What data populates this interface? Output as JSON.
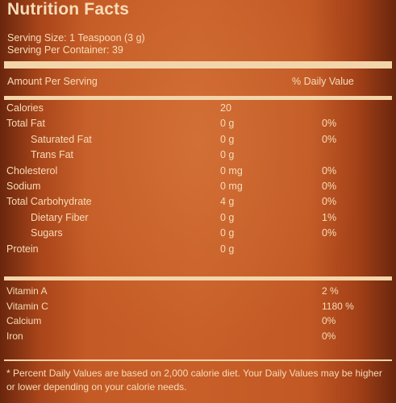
{
  "label": {
    "title": "Nutrition Facts",
    "serving_size": "Serving Size: 1 Teaspoon (3 g)",
    "servings_per_container": "Serving Per Container: 39",
    "amount_per_serving": "Amount Per Serving",
    "daily_value_header": "% Daily Value",
    "nutrients": [
      {
        "name": "Calories",
        "amount": "20",
        "dv": "",
        "indent": false
      },
      {
        "name": "Total Fat",
        "amount": "0 g",
        "dv": "0%",
        "indent": false
      },
      {
        "name": "Saturated Fat",
        "amount": "0 g",
        "dv": "0%",
        "indent": true
      },
      {
        "name": "Trans Fat",
        "amount": "0 g",
        "dv": "",
        "indent": true
      },
      {
        "name": "Cholesterol",
        "amount": "0 mg",
        "dv": "0%",
        "indent": false
      },
      {
        "name": "Sodium",
        "amount": "0 mg",
        "dv": "0%",
        "indent": false
      },
      {
        "name": "Total Carbohydrate",
        "amount": "4 g",
        "dv": "0%",
        "indent": false
      },
      {
        "name": "Dietary Fiber",
        "amount": "0 g",
        "dv": "1%",
        "indent": true
      },
      {
        "name": "Sugars",
        "amount": "0 g",
        "dv": "0%",
        "indent": true
      },
      {
        "name": "Protein",
        "amount": "0 g",
        "dv": "",
        "indent": false
      }
    ],
    "vitamins": [
      {
        "name": "Vitamin A",
        "dv": "2 %"
      },
      {
        "name": "Vitamin C",
        "dv": "1180 %"
      },
      {
        "name": "Calcium",
        "dv": "0%"
      },
      {
        "name": "Iron",
        "dv": "0%"
      }
    ],
    "footnote": "* Percent Daily Values are based on 2,000 calorie diet. Your Daily Values may be higher or lower depending on your calorie needs."
  },
  "colors": {
    "background": "#c45a25",
    "text": "#f6ddb8"
  }
}
